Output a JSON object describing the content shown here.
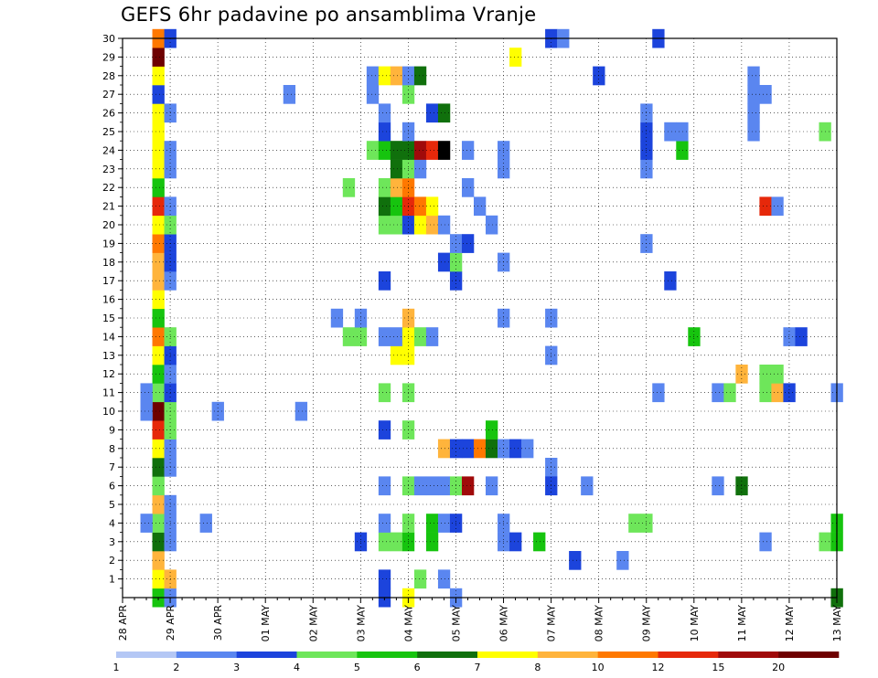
{
  "chart_data": {
    "type": "heatmap",
    "title": "GEFS 6hr padavine po ansamblima Vranje",
    "x_tick_labels": [
      "28 APR",
      "29 APR",
      "30 APR",
      "01 MAY",
      "02 MAY",
      "03 MAY",
      "04 MAY",
      "05 MAY",
      "06 MAY",
      "07 MAY",
      "08 MAY",
      "09 MAY",
      "10 MAY",
      "11 MAY",
      "12 MAY",
      "13 MAY"
    ],
    "x_steps_per_day": 4,
    "x_step_range": [
      0,
      60
    ],
    "y_tick_labels": [
      "1",
      "2",
      "3",
      "4",
      "5",
      "6",
      "7",
      "8",
      "9",
      "10",
      "11",
      "12",
      "13",
      "14",
      "15",
      "16",
      "17",
      "18",
      "19",
      "20",
      "21",
      "22",
      "23",
      "24",
      "25",
      "26",
      "27",
      "28",
      "29",
      "30"
    ],
    "y_range": [
      0,
      30
    ],
    "grid": true,
    "colorbar": {
      "labels": [
        "1",
        "2",
        "3",
        "4",
        "5",
        "6",
        "7",
        "8",
        "10",
        "12",
        "15",
        "20"
      ],
      "colors": [
        "#b4c7f5",
        "#5a86f0",
        "#1c44dc",
        "#6ee65a",
        "#16c40e",
        "#10700c",
        "#ffff00",
        "#ffb43c",
        "#ff7800",
        "#e6280a",
        "#a00a0a",
        "#6e0000"
      ]
    },
    "cells": [
      [
        3,
        0,
        4
      ],
      [
        3,
        1,
        6
      ],
      [
        3,
        2,
        7
      ],
      [
        3,
        3,
        5
      ],
      [
        3,
        4,
        3
      ],
      [
        3,
        5,
        7
      ],
      [
        3,
        6,
        3
      ],
      [
        3,
        7,
        5
      ],
      [
        3,
        8,
        6
      ],
      [
        3,
        9,
        9
      ],
      [
        3,
        10,
        11
      ],
      [
        3,
        11,
        3
      ],
      [
        3,
        12,
        4
      ],
      [
        3,
        13,
        6
      ],
      [
        3,
        14,
        8
      ],
      [
        3,
        15,
        4
      ],
      [
        3,
        16,
        6
      ],
      [
        3,
        17,
        7
      ],
      [
        3,
        18,
        7
      ],
      [
        3,
        19,
        8
      ],
      [
        3,
        20,
        6
      ],
      [
        3,
        21,
        9
      ],
      [
        3,
        22,
        4
      ],
      [
        3,
        23,
        6
      ],
      [
        3,
        24,
        6
      ],
      [
        3,
        25,
        6
      ],
      [
        3,
        26,
        6
      ],
      [
        3,
        27,
        2
      ],
      [
        3,
        28,
        6
      ],
      [
        3,
        29,
        11
      ],
      [
        3,
        30,
        8
      ],
      [
        2,
        10,
        1
      ],
      [
        2,
        11,
        1
      ],
      [
        2,
        4,
        1
      ],
      [
        4,
        0,
        1
      ],
      [
        4,
        1,
        7
      ],
      [
        4,
        3,
        1
      ],
      [
        4,
        4,
        1
      ],
      [
        4,
        5,
        1
      ],
      [
        4,
        7,
        1
      ],
      [
        4,
        8,
        1
      ],
      [
        4,
        9,
        3
      ],
      [
        4,
        10,
        3
      ],
      [
        4,
        11,
        2
      ],
      [
        4,
        12,
        1
      ],
      [
        4,
        13,
        2
      ],
      [
        4,
        14,
        3
      ],
      [
        4,
        17,
        1
      ],
      [
        4,
        18,
        2
      ],
      [
        4,
        19,
        2
      ],
      [
        4,
        20,
        3
      ],
      [
        4,
        21,
        1
      ],
      [
        4,
        23,
        1
      ],
      [
        4,
        24,
        1
      ],
      [
        4,
        26,
        1
      ],
      [
        4,
        30,
        2
      ],
      [
        7,
        4,
        1
      ],
      [
        8,
        10,
        1
      ],
      [
        14,
        27,
        1
      ],
      [
        15,
        10,
        1
      ],
      [
        18,
        15,
        1
      ],
      [
        19,
        14,
        3
      ],
      [
        20,
        3,
        2
      ],
      [
        20,
        14,
        3
      ],
      [
        20,
        15,
        1
      ],
      [
        19,
        22,
        3
      ],
      [
        21,
        24,
        3
      ],
      [
        21,
        27,
        1
      ],
      [
        21,
        28,
        1
      ],
      [
        22,
        1,
        2
      ],
      [
        22,
        0,
        2
      ],
      [
        22,
        3,
        3
      ],
      [
        22,
        4,
        1
      ],
      [
        22,
        6,
        1
      ],
      [
        22,
        9,
        2
      ],
      [
        22,
        11,
        3
      ],
      [
        22,
        14,
        1
      ],
      [
        22,
        17,
        2
      ],
      [
        22,
        20,
        3
      ],
      [
        22,
        21,
        5
      ],
      [
        22,
        22,
        3
      ],
      [
        22,
        24,
        4
      ],
      [
        22,
        25,
        2
      ],
      [
        22,
        26,
        1
      ],
      [
        22,
        28,
        6
      ],
      [
        23,
        3,
        3
      ],
      [
        23,
        13,
        6
      ],
      [
        23,
        14,
        1
      ],
      [
        23,
        20,
        3
      ],
      [
        23,
        21,
        4
      ],
      [
        23,
        22,
        7
      ],
      [
        23,
        23,
        5
      ],
      [
        23,
        24,
        5
      ],
      [
        23,
        28,
        7
      ],
      [
        24,
        0,
        6
      ],
      [
        24,
        3,
        4
      ],
      [
        24,
        4,
        3
      ],
      [
        24,
        6,
        3
      ],
      [
        24,
        9,
        3
      ],
      [
        24,
        11,
        3
      ],
      [
        24,
        13,
        6
      ],
      [
        24,
        14,
        6
      ],
      [
        24,
        15,
        7
      ],
      [
        24,
        20,
        2
      ],
      [
        24,
        21,
        9
      ],
      [
        24,
        22,
        8
      ],
      [
        24,
        23,
        3
      ],
      [
        24,
        24,
        5
      ],
      [
        24,
        25,
        1
      ],
      [
        24,
        27,
        3
      ],
      [
        24,
        28,
        1
      ],
      [
        25,
        1,
        3
      ],
      [
        25,
        6,
        1
      ],
      [
        25,
        14,
        3
      ],
      [
        25,
        20,
        6
      ],
      [
        25,
        21,
        8
      ],
      [
        25,
        23,
        1
      ],
      [
        25,
        24,
        10
      ],
      [
        25,
        28,
        5
      ],
      [
        26,
        3,
        4
      ],
      [
        26,
        4,
        4
      ],
      [
        26,
        6,
        1
      ],
      [
        26,
        14,
        1
      ],
      [
        26,
        20,
        7
      ],
      [
        26,
        21,
        6
      ],
      [
        26,
        24,
        9
      ],
      [
        26,
        26,
        2
      ],
      [
        27,
        1,
        1
      ],
      [
        27,
        4,
        1
      ],
      [
        27,
        6,
        1
      ],
      [
        27,
        8,
        7
      ],
      [
        27,
        18,
        2
      ],
      [
        27,
        20,
        1
      ],
      [
        27,
        24,
        12
      ],
      [
        27,
        26,
        5
      ],
      [
        28,
        0,
        1
      ],
      [
        28,
        4,
        2
      ],
      [
        28,
        6,
        3
      ],
      [
        28,
        8,
        2
      ],
      [
        28,
        17,
        2
      ],
      [
        28,
        18,
        3
      ],
      [
        28,
        19,
        1
      ],
      [
        29,
        6,
        10
      ],
      [
        29,
        8,
        2
      ],
      [
        29,
        19,
        2
      ],
      [
        29,
        22,
        1
      ],
      [
        29,
        24,
        1
      ],
      [
        30,
        8,
        8
      ],
      [
        30,
        21,
        1
      ],
      [
        31,
        6,
        1
      ],
      [
        31,
        8,
        5
      ],
      [
        31,
        9,
        4
      ],
      [
        31,
        20,
        1
      ],
      [
        32,
        3,
        1
      ],
      [
        32,
        4,
        1
      ],
      [
        32,
        8,
        1
      ],
      [
        32,
        15,
        1
      ],
      [
        32,
        18,
        1
      ],
      [
        32,
        23,
        1
      ],
      [
        32,
        24,
        1
      ],
      [
        33,
        3,
        2
      ],
      [
        33,
        8,
        2
      ],
      [
        33,
        29,
        6
      ],
      [
        34,
        8,
        1
      ],
      [
        35,
        3,
        4
      ],
      [
        36,
        15,
        1
      ],
      [
        36,
        13,
        1
      ],
      [
        36,
        7,
        1
      ],
      [
        36,
        6,
        2
      ],
      [
        36,
        30,
        2
      ],
      [
        37,
        30,
        1
      ],
      [
        38,
        2,
        2
      ],
      [
        39,
        6,
        1
      ],
      [
        40,
        28,
        2
      ],
      [
        42,
        2,
        1
      ],
      [
        43,
        4,
        3
      ],
      [
        44,
        4,
        3
      ],
      [
        44,
        19,
        1
      ],
      [
        44,
        23,
        1
      ],
      [
        44,
        24,
        2
      ],
      [
        44,
        25,
        2
      ],
      [
        44,
        26,
        1
      ],
      [
        45,
        11,
        1
      ],
      [
        45,
        30,
        2
      ],
      [
        46,
        17,
        2
      ],
      [
        46,
        25,
        1
      ],
      [
        47,
        24,
        4
      ],
      [
        47,
        25,
        1
      ],
      [
        48,
        14,
        4
      ],
      [
        50,
        6,
        1
      ],
      [
        50,
        11,
        1
      ],
      [
        51,
        11,
        3
      ],
      [
        52,
        6,
        5
      ],
      [
        52,
        12,
        7
      ],
      [
        53,
        26,
        1
      ],
      [
        53,
        25,
        1
      ],
      [
        53,
        28,
        1
      ],
      [
        53,
        27,
        1
      ],
      [
        54,
        3,
        1
      ],
      [
        54,
        11,
        3
      ],
      [
        54,
        12,
        3
      ],
      [
        54,
        21,
        9
      ],
      [
        54,
        27,
        1
      ],
      [
        55,
        11,
        7
      ],
      [
        55,
        12,
        3
      ],
      [
        55,
        21,
        1
      ],
      [
        56,
        11,
        2
      ],
      [
        56,
        14,
        1
      ],
      [
        57,
        14,
        2
      ],
      [
        59,
        3,
        3
      ],
      [
        59,
        25,
        3
      ],
      [
        60,
        3,
        4
      ],
      [
        60,
        4,
        4
      ],
      [
        60,
        0,
        5
      ],
      [
        60,
        11,
        1
      ]
    ]
  }
}
